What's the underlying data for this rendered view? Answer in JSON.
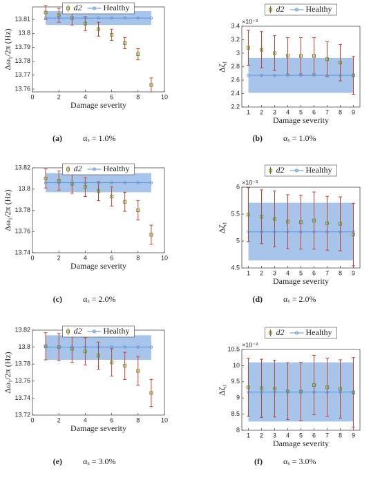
{
  "chart_data": [
    {
      "type": "errorbar",
      "panel_label": "(a)",
      "caption": "αₓ = 1.0%",
      "x_label": "Damage severity",
      "y_label": "Δω₁/2π (Hz)",
      "x": [
        1,
        2,
        3,
        4,
        5,
        6,
        7,
        8,
        9
      ],
      "xlim": [
        0,
        10
      ],
      "xticks": [
        0,
        2,
        4,
        6,
        8,
        10
      ],
      "ylim": [
        13.758,
        13.819
      ],
      "yticks": [
        13.76,
        13.77,
        13.78,
        13.79,
        13.8,
        13.81
      ],
      "series": [
        {
          "name": "d2",
          "color": "#c8402e",
          "marker_color": "#6b8e23",
          "values": [
            13.815,
            13.813,
            13.811,
            13.807,
            13.803,
            13.799,
            13.793,
            13.785,
            13.763
          ],
          "errors": [
            0.005,
            0.005,
            0.005,
            0.005,
            0.005,
            0.004,
            0.004,
            0.004,
            0.005
          ]
        },
        {
          "name": "Healthy",
          "color": "#5b8fd6",
          "values": [
            13.811,
            13.811,
            13.811,
            13.811,
            13.811,
            13.811,
            13.811,
            13.811,
            13.811
          ]
        }
      ],
      "healthy_band": [
        13.806,
        13.816
      ],
      "band_color": "#a7c5ea"
    },
    {
      "type": "errorbar",
      "panel_label": "(b)",
      "caption": "αₓ = 1.0%",
      "x_label": "Damage severity",
      "y_label": "Δζ₁",
      "y_exponent": "×10⁻³",
      "x": [
        1,
        2,
        3,
        4,
        5,
        6,
        7,
        8,
        9
      ],
      "xlim": [
        0.5,
        9.5
      ],
      "xticks": [
        1,
        2,
        3,
        4,
        5,
        6,
        7,
        8,
        9
      ],
      "ylim": [
        2.2,
        3.4
      ],
      "yticks": [
        2.2,
        2.4,
        2.6,
        2.8,
        3,
        3.2,
        3.4
      ],
      "series": [
        {
          "name": "d2",
          "color": "#c8402e",
          "marker_color": "#6b8e23",
          "values": [
            3.08,
            3.05,
            3.0,
            2.96,
            2.96,
            2.96,
            2.91,
            2.86,
            2.67
          ],
          "errors": [
            0.26,
            0.27,
            0.26,
            0.27,
            0.27,
            0.27,
            0.26,
            0.27,
            0.28
          ]
        },
        {
          "name": "Healthy",
          "color": "#5b8fd6",
          "values": [
            2.67,
            2.67,
            2.67,
            2.67,
            2.67,
            2.67,
            2.67,
            2.67,
            2.67
          ]
        }
      ],
      "healthy_band": [
        2.41,
        2.93
      ],
      "band_color": "#a7c5ea"
    },
    {
      "type": "errorbar",
      "panel_label": "(c)",
      "caption": "αₓ = 2.0%",
      "x_label": "Damage severity",
      "y_label": "Δω₁/2π (Hz)",
      "x": [
        1,
        2,
        3,
        4,
        5,
        6,
        7,
        8,
        9
      ],
      "xlim": [
        0,
        10
      ],
      "xticks": [
        0,
        2,
        4,
        6,
        8,
        10
      ],
      "ylim": [
        13.74,
        13.82
      ],
      "yticks": [
        13.74,
        13.76,
        13.78,
        13.8,
        13.82
      ],
      "series": [
        {
          "name": "d2",
          "color": "#c8402e",
          "marker_color": "#6b8e23",
          "values": [
            13.81,
            13.808,
            13.805,
            13.802,
            13.798,
            13.793,
            13.788,
            13.78,
            13.757
          ],
          "errors": [
            0.009,
            0.009,
            0.009,
            0.009,
            0.009,
            0.009,
            0.009,
            0.009,
            0.009
          ]
        },
        {
          "name": "Healthy",
          "color": "#5b8fd6",
          "values": [
            13.806,
            13.806,
            13.806,
            13.806,
            13.806,
            13.806,
            13.806,
            13.806,
            13.806
          ]
        }
      ],
      "healthy_band": [
        13.797,
        13.815
      ],
      "band_color": "#a7c5ea"
    },
    {
      "type": "errorbar",
      "panel_label": "(d)",
      "caption": "αₓ = 2.0%",
      "x_label": "Damage severity",
      "y_label": "Δζ₁",
      "y_exponent": "×10⁻³",
      "x": [
        1,
        2,
        3,
        4,
        5,
        6,
        7,
        8,
        9
      ],
      "xlim": [
        0.5,
        9.5
      ],
      "xticks": [
        1,
        2,
        3,
        4,
        5,
        6,
        7,
        8,
        9
      ],
      "ylim": [
        4.5,
        6
      ],
      "yticks": [
        4.5,
        5,
        5.5,
        6
      ],
      "series": [
        {
          "name": "d2",
          "color": "#c8402e",
          "marker_color": "#6b8e23",
          "values": [
            5.49,
            5.45,
            5.41,
            5.36,
            5.35,
            5.38,
            5.33,
            5.32,
            5.12
          ],
          "errors": [
            0.5,
            0.5,
            0.52,
            0.5,
            0.5,
            0.53,
            0.5,
            0.5,
            0.58
          ]
        },
        {
          "name": "Healthy",
          "color": "#5b8fd6",
          "values": [
            5.17,
            5.17,
            5.17,
            5.17,
            5.17,
            5.17,
            5.17,
            5.17,
            5.17
          ]
        }
      ],
      "healthy_band": [
        4.64,
        5.71
      ],
      "band_color": "#a7c5ea"
    },
    {
      "type": "errorbar",
      "panel_label": "(e)",
      "caption": "αₓ = 3.0%",
      "x_label": "Damage severity",
      "y_label": "Δω₁/2π (Hz)",
      "x": [
        1,
        2,
        3,
        4,
        5,
        6,
        7,
        8,
        9
      ],
      "xlim": [
        0,
        10
      ],
      "xticks": [
        0,
        2,
        4,
        6,
        8,
        10
      ],
      "ylim": [
        13.72,
        13.82
      ],
      "yticks": [
        13.72,
        13.74,
        13.76,
        13.78,
        13.8,
        13.82
      ],
      "series": [
        {
          "name": "d2",
          "color": "#c8402e",
          "marker_color": "#6b8e23",
          "values": [
            13.801,
            13.8,
            13.798,
            13.795,
            13.79,
            13.782,
            13.778,
            13.772,
            13.746
          ],
          "errors": [
            0.016,
            0.016,
            0.016,
            0.016,
            0.016,
            0.016,
            0.016,
            0.017,
            0.016
          ]
        },
        {
          "name": "Healthy",
          "color": "#5b8fd6",
          "values": [
            13.8,
            13.8,
            13.8,
            13.8,
            13.8,
            13.8,
            13.8,
            13.8,
            13.8
          ]
        }
      ],
      "healthy_band": [
        13.785,
        13.814
      ],
      "band_color": "#a7c5ea"
    },
    {
      "type": "errorbar",
      "panel_label": "(f)",
      "caption": "αₓ = 3.0%",
      "x_label": "Damage severity",
      "y_label": "Δζ₁",
      "y_exponent": "×10⁻³",
      "x": [
        1,
        2,
        3,
        4,
        5,
        6,
        7,
        8,
        9
      ],
      "xlim": [
        0.5,
        9.5
      ],
      "xticks": [
        1,
        2,
        3,
        4,
        5,
        6,
        7,
        8,
        9
      ],
      "ylim": [
        8,
        10.5
      ],
      "yticks": [
        8,
        8.5,
        9,
        9.5,
        10,
        10.5
      ],
      "series": [
        {
          "name": "d2",
          "color": "#c8402e",
          "marker_color": "#6b8e23",
          "values": [
            9.33,
            9.3,
            9.29,
            9.21,
            9.2,
            9.4,
            9.33,
            9.28,
            9.17
          ],
          "errors": [
            0.9,
            0.9,
            0.88,
            0.88,
            0.9,
            0.92,
            0.9,
            0.9,
            1.08
          ]
        },
        {
          "name": "Healthy",
          "color": "#5b8fd6",
          "values": [
            9.18,
            9.18,
            9.18,
            9.18,
            9.18,
            9.18,
            9.18,
            9.18,
            9.18
          ]
        }
      ],
      "healthy_band": [
        8.27,
        10.1
      ],
      "band_color": "#a7c5ea"
    }
  ]
}
